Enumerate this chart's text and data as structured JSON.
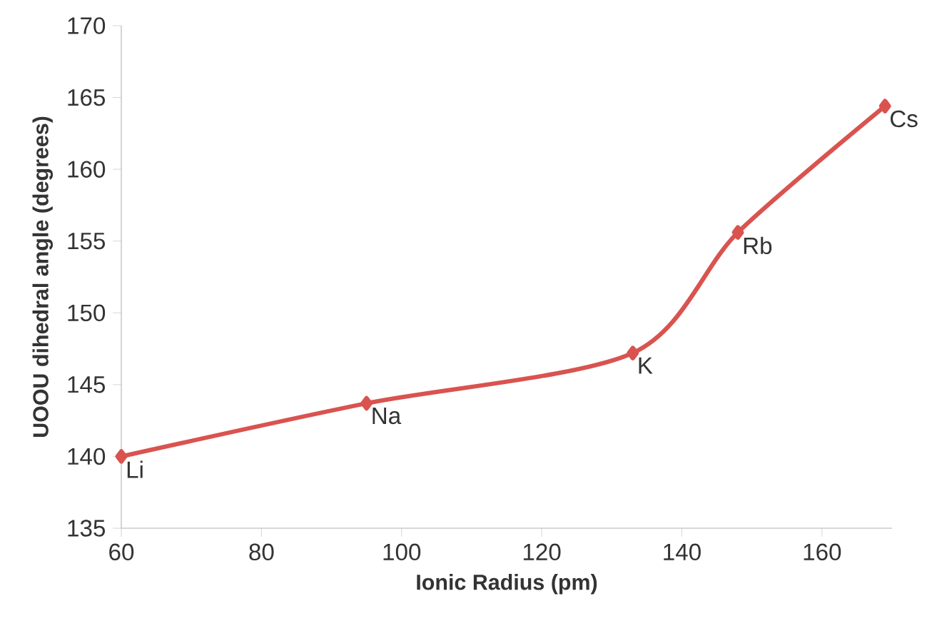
{
  "chart_data": {
    "type": "line",
    "xlabel": "Ionic Radius (pm)",
    "ylabel": "UOOU dihedral angle (degrees)",
    "x": [
      60,
      95,
      133,
      148,
      169
    ],
    "series": [
      {
        "color": "#d9534f",
        "values": [
          140,
          143.7,
          147.2,
          155.6,
          164.4
        ]
      }
    ],
    "xlim": [
      60,
      170
    ],
    "xticks": [
      60,
      80,
      100,
      120,
      140,
      160
    ],
    "ylim": [
      135,
      170
    ],
    "yticks": [
      135,
      140,
      145,
      150,
      155,
      160,
      165,
      170
    ],
    "marker": "diamond",
    "line_style": "solid",
    "annotations": [
      {
        "text": "Li",
        "x": 60,
        "y": 140
      },
      {
        "text": "Na",
        "x": 95,
        "y": 143.7
      },
      {
        "text": "K",
        "x": 133,
        "y": 147.2
      },
      {
        "text": "Rb",
        "x": 148,
        "y": 155.6
      },
      {
        "text": "Cs",
        "x": 169,
        "y": 164.4
      }
    ]
  }
}
